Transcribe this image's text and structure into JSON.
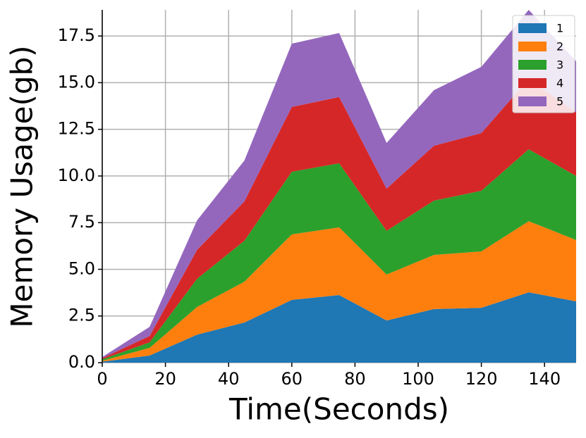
{
  "chart_data": {
    "type": "stackedarea",
    "x_label": "Time(Seconds)",
    "y_label": "Memory Usage(gb)",
    "x": [
      0,
      15,
      30,
      45,
      60,
      75,
      90,
      105,
      120,
      135,
      150
    ],
    "series": [
      {
        "name": "1",
        "color": "#1f77b4",
        "values": [
          0.05,
          0.38,
          1.5,
          2.15,
          3.36,
          3.62,
          2.26,
          2.87,
          2.94,
          3.77,
          3.28
        ]
      },
      {
        "name": "2",
        "color": "#ff7f0e",
        "values": [
          0.05,
          0.41,
          1.48,
          2.19,
          3.51,
          3.63,
          2.46,
          2.9,
          3.02,
          3.81,
          3.29
        ]
      },
      {
        "name": "3",
        "color": "#2ca02c",
        "values": [
          0.08,
          0.3,
          1.51,
          2.19,
          3.36,
          3.43,
          2.34,
          2.91,
          3.25,
          3.85,
          3.43
        ]
      },
      {
        "name": "4",
        "color": "#d62728",
        "values": [
          0.06,
          0.34,
          1.55,
          2.11,
          3.47,
          3.55,
          2.26,
          2.94,
          3.09,
          3.77,
          3.4
        ]
      },
      {
        "name": "5",
        "color": "#9467bd",
        "values": [
          0.06,
          0.49,
          1.58,
          2.19,
          3.39,
          3.43,
          2.45,
          2.98,
          3.55,
          3.7,
          2.75
        ]
      }
    ],
    "xlim": [
      0,
      150
    ],
    "ylim": [
      0,
      18.9
    ],
    "xticks": [
      0,
      20,
      40,
      60,
      80,
      100,
      120,
      140
    ],
    "yticks": [
      {
        "value": 0,
        "label": "0.0"
      },
      2.5,
      {
        "value": 5,
        "label": "5.0"
      },
      7.5,
      {
        "value": 10,
        "label": "10.0"
      },
      12.5,
      {
        "value": 15,
        "label": "15.0"
      },
      17.5
    ],
    "grid": true,
    "legend": "upper right"
  }
}
